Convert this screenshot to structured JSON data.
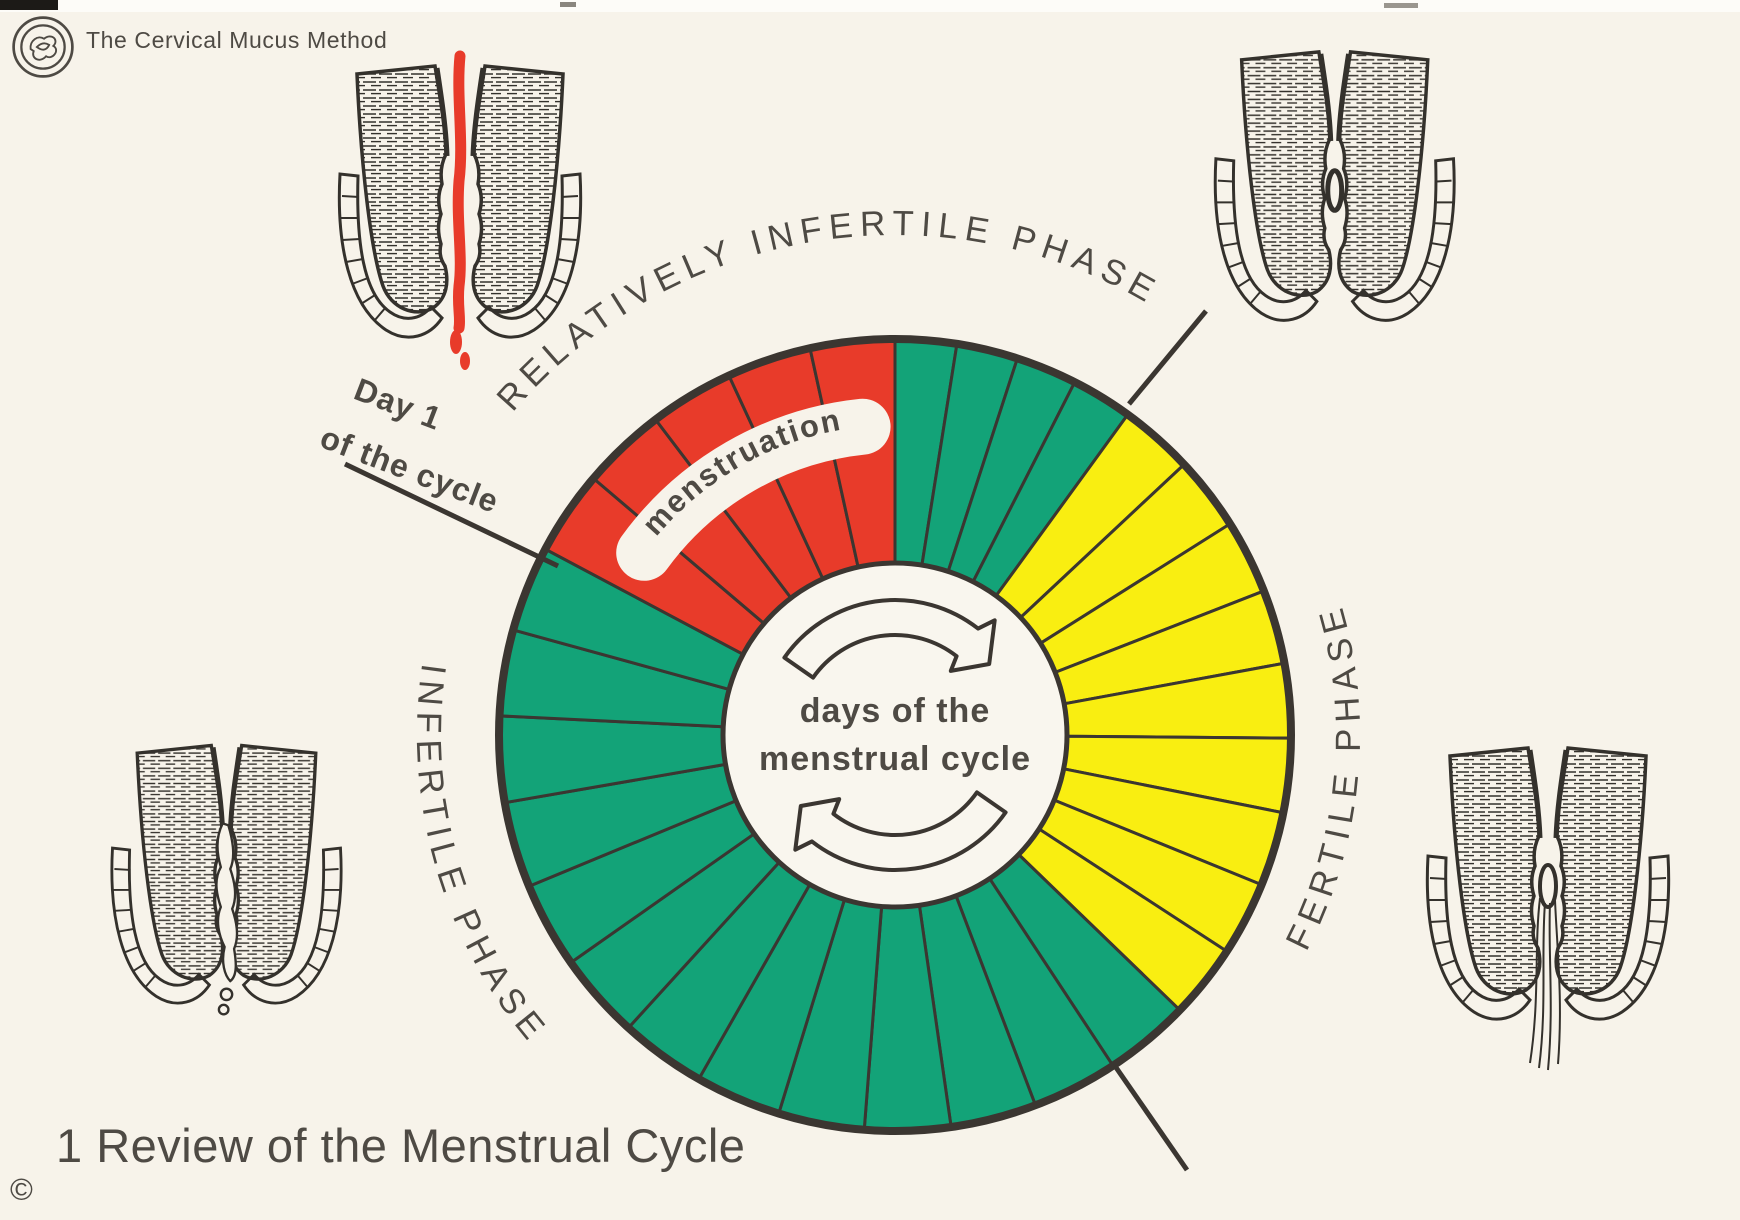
{
  "meta": {
    "kind": "educational-poster",
    "subject": "natural family planning chart"
  },
  "header": {
    "logo": "cervical-mucus-method-logo",
    "brand": "The Cervical Mucus Method"
  },
  "footer": {
    "title": "1 Review of the Menstrual Cycle",
    "copyright": "©"
  },
  "pointer": {
    "line1": "Day 1",
    "line2": "of the cycle"
  },
  "wheel": {
    "center": {
      "line1": "days of the",
      "line2": "menstrual cycle"
    },
    "band_label": "menstruation",
    "labels": {
      "top": "RELATIVELY INFERTILE PHASE",
      "right": "FERTILE PHASE",
      "left": "INFERTILE PHASE"
    },
    "direction": "clockwise",
    "segments": [
      {
        "name": "relatively-infertile",
        "color": "#13a378",
        "start_deg": 0,
        "end_deg": 36,
        "wedges": 4
      },
      {
        "name": "fertile",
        "color": "#f9ee11",
        "start_deg": 36,
        "end_deg": 134,
        "wedges": 9
      },
      {
        "name": "infertile",
        "color": "#13a378",
        "start_deg": 134,
        "end_deg": 298,
        "wedges": 13
      },
      {
        "name": "menstruation",
        "color": "#e83b2a",
        "start_deg": 298,
        "end_deg": 360,
        "wedges": 5
      }
    ]
  },
  "illustrations": [
    {
      "position": "top-left",
      "variant": "menstruation",
      "depicts": "cervix with red menstrual flow"
    },
    {
      "position": "top-right",
      "variant": "closed",
      "depicts": "closed cervix - relatively infertile phase"
    },
    {
      "position": "bottom-left",
      "variant": "plug",
      "depicts": "cervix with thick mucus plug - infertile phase"
    },
    {
      "position": "bottom-right",
      "variant": "fertile",
      "depicts": "open cervix with stretchy fertile mucus"
    }
  ],
  "colors": {
    "background": "#f7f3ea",
    "ink": "#3b3631",
    "text": "#4e4a44",
    "red": "#e83b2a",
    "green": "#13a378",
    "yellow": "#f9ee11"
  }
}
